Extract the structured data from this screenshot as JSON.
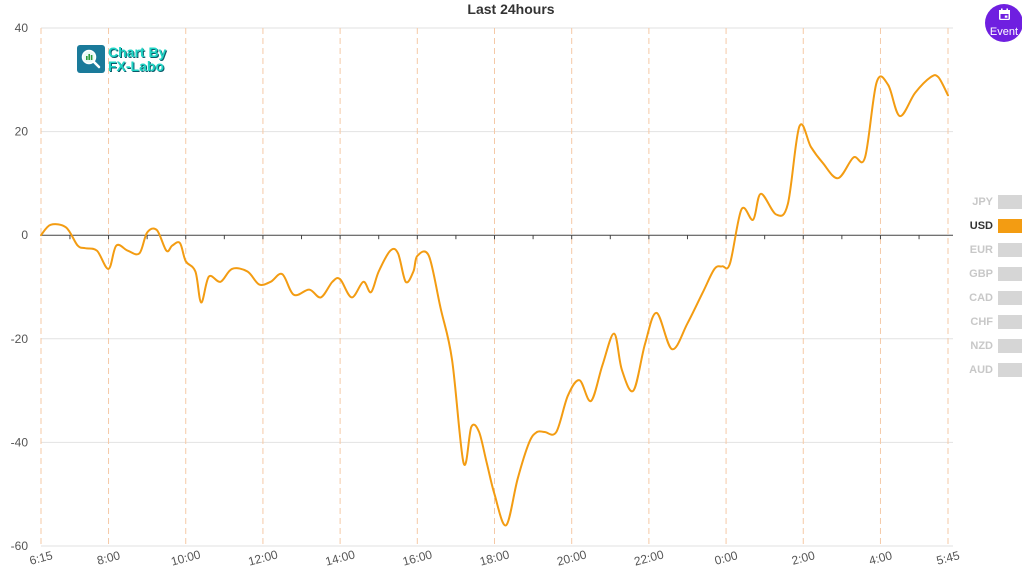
{
  "chart_data": {
    "type": "line",
    "title": "Last 24hours",
    "xlabel": "",
    "ylabel": "",
    "ylim": [
      -60,
      40
    ],
    "yticks": [
      40,
      20,
      0,
      -20,
      -40,
      -60
    ],
    "x_tick_labels": [
      "6:15",
      "8:00",
      "10:00",
      "12:00",
      "14:00",
      "16:00",
      "18:00",
      "20:00",
      "22:00",
      "0:00",
      "2:00",
      "4:00",
      "5:45"
    ],
    "x_tick_hours": [
      6.25,
      8,
      10,
      12,
      14,
      16,
      18,
      20,
      22,
      24,
      26,
      28,
      29.75
    ],
    "xlim_hours": [
      6.25,
      29.75
    ],
    "grid": true,
    "series": [
      {
        "name": "USD",
        "color": "#f39c12",
        "x_hours": [
          6.25,
          6.5,
          6.9,
          7.2,
          7.4,
          7.7,
          8.0,
          8.2,
          8.5,
          8.8,
          9.0,
          9.25,
          9.5,
          9.65,
          9.85,
          10.0,
          10.25,
          10.4,
          10.6,
          10.9,
          11.2,
          11.6,
          11.9,
          12.2,
          12.5,
          12.8,
          13.2,
          13.5,
          13.8,
          14.0,
          14.3,
          14.6,
          14.8,
          15.0,
          15.3,
          15.5,
          15.7,
          15.9,
          16.0,
          16.3,
          16.6,
          16.9,
          17.2,
          17.4,
          17.6,
          17.8,
          18.0,
          18.3,
          18.6,
          18.9,
          19.1,
          19.3,
          19.6,
          19.9,
          20.2,
          20.5,
          20.8,
          21.1,
          21.3,
          21.6,
          21.9,
          22.2,
          22.6,
          23.0,
          23.4,
          23.7,
          23.9,
          24.1,
          24.4,
          24.7,
          24.9,
          25.3,
          25.6,
          25.9,
          26.2,
          26.5,
          26.9,
          27.3,
          27.6,
          27.9,
          28.2,
          28.5,
          28.9,
          29.3,
          29.5,
          29.75
        ],
        "y": [
          0,
          2,
          1.5,
          -2,
          -2.5,
          -3,
          -6.5,
          -2,
          -3,
          -3.5,
          0.5,
          1,
          -3,
          -2,
          -1.5,
          -5,
          -7,
          -13,
          -8,
          -9,
          -6.5,
          -7,
          -9.5,
          -9,
          -7.5,
          -11.5,
          -10.5,
          -12,
          -9,
          -8.5,
          -12,
          -9,
          -11,
          -7,
          -3,
          -3.5,
          -9,
          -7,
          -4,
          -4,
          -14,
          -24,
          -44,
          -37,
          -38,
          -44,
          -50,
          -56,
          -47,
          -40,
          -38,
          -38,
          -38,
          -31,
          -28,
          -32,
          -25,
          -19,
          -26,
          -30,
          -21,
          -15,
          -22,
          -17,
          -11,
          -6.5,
          -6,
          -5.5,
          5,
          3,
          8,
          4,
          6,
          21,
          17,
          14,
          11,
          15,
          15,
          29.5,
          29,
          23,
          27.5,
          30.5,
          30.5,
          27
        ]
      }
    ]
  },
  "watermark": {
    "line1": "Chart By",
    "line2": "FX-Labo"
  },
  "event_button": {
    "label": "Event"
  },
  "legend": {
    "items": [
      {
        "label": "JPY",
        "active": false
      },
      {
        "label": "USD",
        "active": true,
        "color": "#f39c12"
      },
      {
        "label": "EUR",
        "active": false
      },
      {
        "label": "GBP",
        "active": false
      },
      {
        "label": "CAD",
        "active": false
      },
      {
        "label": "CHF",
        "active": false
      },
      {
        "label": "NZD",
        "active": false
      },
      {
        "label": "AUD",
        "active": false
      }
    ]
  }
}
